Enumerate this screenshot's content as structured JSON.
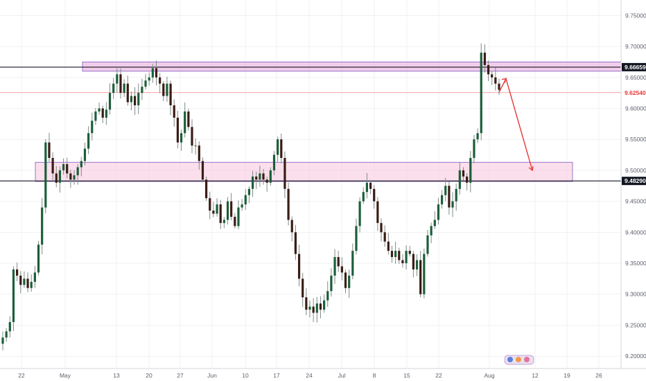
{
  "chart_data": {
    "type": "candlestick",
    "y_axis": {
      "ticks": [
        "9.75000",
        "9.70000",
        "9.65000",
        "9.60000",
        "9.55000",
        "9.50000",
        "9.45000",
        "9.40000",
        "9.35000",
        "9.30000",
        "9.25000",
        "9.20000"
      ],
      "tick_values": [
        9.75,
        9.7,
        9.65,
        9.6,
        9.55,
        9.5,
        9.45,
        9.4,
        9.35,
        9.3,
        9.25,
        9.2
      ],
      "range": [
        9.18,
        9.775
      ]
    },
    "x_axis": {
      "labels": [
        "22",
        "May",
        "13",
        "20",
        "27",
        "Jun",
        "10",
        "17",
        "24",
        "Jul",
        "8",
        "15",
        "22",
        "Aug",
        "12",
        "19",
        "26"
      ]
    },
    "price_levels": [
      {
        "name": "resistance-line",
        "value": 9.66659,
        "label": "9.66659",
        "color": "#131722"
      },
      {
        "name": "current-price-line",
        "value": 9.6254,
        "label": "9.62540",
        "color": "#ef5350"
      },
      {
        "name": "support-line",
        "value": 9.4829,
        "label": "9.48290",
        "color": "#131722"
      }
    ],
    "zones": [
      {
        "name": "resistance-zone",
        "from": 9.66,
        "to": 9.675,
        "color": "#e6a4d8"
      },
      {
        "name": "support-zone",
        "from": 9.482,
        "to": 9.513,
        "color": "#f7c5dc"
      }
    ],
    "projection": [
      {
        "date": "Aug 6",
        "value": 9.626
      },
      {
        "date": "Aug 9",
        "value": 9.648
      },
      {
        "date": "Aug 22",
        "value": 9.5
      }
    ],
    "colors": {
      "up": "#1b5e3a",
      "down": "#3a1c14",
      "wick": "#7d8a86",
      "arrow": "#e53935",
      "grid": "#e1e3eb"
    },
    "candle_closes": [
      9.23,
      9.24,
      9.255,
      9.34,
      9.33,
      9.315,
      9.325,
      9.31,
      9.32,
      9.335,
      9.38,
      9.44,
      9.545,
      9.52,
      9.495,
      9.48,
      9.5,
      9.51,
      9.495,
      9.485,
      9.492,
      9.505,
      9.515,
      9.535,
      9.56,
      9.58,
      9.595,
      9.6,
      9.585,
      9.598,
      9.625,
      9.64,
      9.655,
      9.625,
      9.64,
      9.61,
      9.62,
      9.605,
      9.625,
      9.635,
      9.645,
      9.65,
      9.665,
      9.65,
      9.64,
      9.62,
      9.64,
      9.605,
      9.585,
      9.545,
      9.56,
      9.595,
      9.57,
      9.54,
      9.54,
      9.515,
      9.485,
      9.455,
      9.435,
      9.43,
      9.445,
      9.415,
      9.42,
      9.45,
      9.425,
      9.41,
      9.44,
      9.445,
      9.46,
      9.47,
      9.49,
      9.485,
      9.495,
      9.485,
      9.48,
      9.5,
      9.525,
      9.55,
      9.52,
      9.47,
      9.42,
      9.4,
      9.365,
      9.325,
      9.295,
      9.275,
      9.28,
      9.27,
      9.285,
      9.275,
      9.29,
      9.305,
      9.33,
      9.36,
      9.345,
      9.335,
      9.31,
      9.33,
      9.37,
      9.41,
      9.45,
      9.465,
      9.48,
      9.47,
      9.45,
      9.415,
      9.4,
      9.385,
      9.37,
      9.36,
      9.37,
      9.355,
      9.35,
      9.37,
      9.365,
      9.34,
      9.355,
      9.3,
      9.365,
      9.395,
      9.41,
      9.42,
      9.445,
      9.46,
      9.475,
      9.44,
      9.45,
      9.47,
      9.5,
      9.49,
      9.48,
      9.52,
      9.55,
      9.56,
      9.69,
      9.67,
      9.655,
      9.65,
      9.64,
      9.63
    ],
    "latest_price": 9.6254
  }
}
